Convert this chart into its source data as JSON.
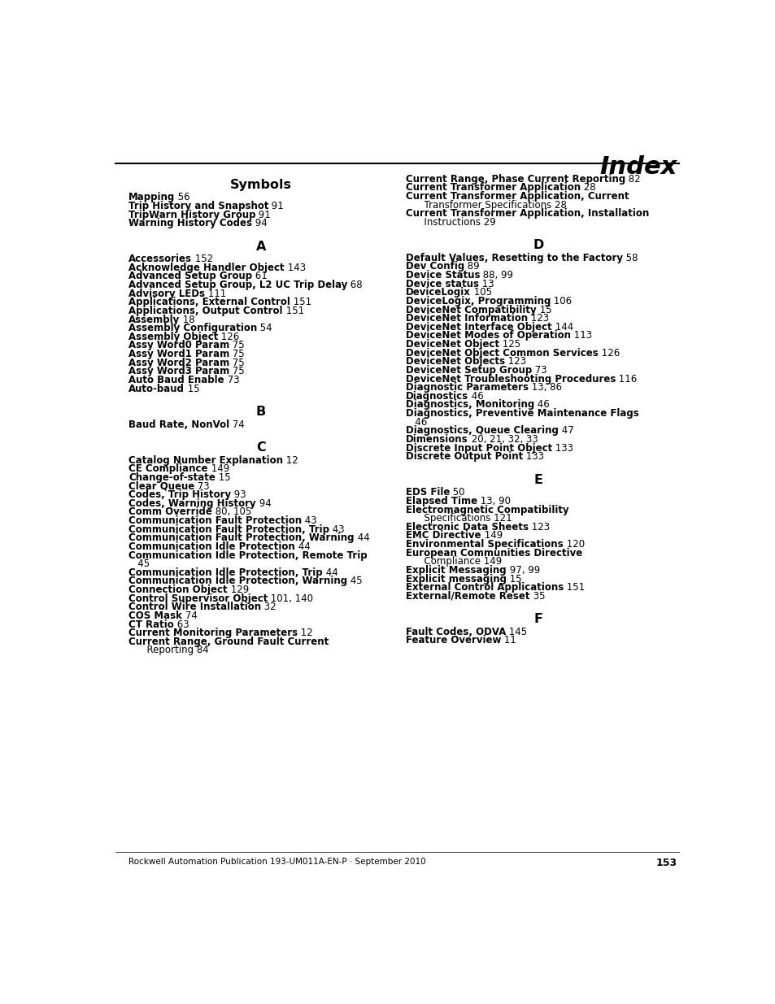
{
  "title": "Index",
  "footer_text": "Rockwell Automation Publication 193-UM011A-EN-P · September 2010",
  "footer_page": "153",
  "left_column": [
    {
      "type": "section",
      "text": "Symbols"
    },
    {
      "type": "entry",
      "bold": "Mapping",
      "normal": " 56"
    },
    {
      "type": "entry",
      "bold": "Trip History and Snapshot",
      "normal": " 91"
    },
    {
      "type": "entry",
      "bold": "TripWarn History Group",
      "normal": " 91"
    },
    {
      "type": "entry",
      "bold": "Warning History Codes",
      "normal": " 94"
    },
    {
      "type": "spacer"
    },
    {
      "type": "section",
      "text": "A"
    },
    {
      "type": "entry",
      "bold": "Accessories",
      "normal": " 152"
    },
    {
      "type": "entry",
      "bold": "Acknowledge Handler Object",
      "normal": " 143"
    },
    {
      "type": "entry",
      "bold": "Advanced Setup Group",
      "normal": " 61"
    },
    {
      "type": "entry",
      "bold": "Advanced Setup Group, L2 UC Trip Delay",
      "normal": " 68"
    },
    {
      "type": "entry",
      "bold": "Advisory LEDs",
      "normal": " 111"
    },
    {
      "type": "entry",
      "bold": "Applications, External Control",
      "normal": " 151"
    },
    {
      "type": "entry",
      "bold": "Applications, Output Control",
      "normal": " 151"
    },
    {
      "type": "entry",
      "bold": "Assembly",
      "normal": " 18"
    },
    {
      "type": "entry",
      "bold": "Assembly Configuration",
      "normal": " 54"
    },
    {
      "type": "entry",
      "bold": "Assembly Object",
      "normal": " 126"
    },
    {
      "type": "entry",
      "bold": "Assy Word0 Param",
      "normal": " 75"
    },
    {
      "type": "entry",
      "bold": "Assy Word1 Param",
      "normal": " 75"
    },
    {
      "type": "entry",
      "bold": "Assy Word2 Param",
      "normal": " 75"
    },
    {
      "type": "entry",
      "bold": "Assy Word3 Param",
      "normal": " 75"
    },
    {
      "type": "entry",
      "bold": "Auto Baud Enable",
      "normal": " 73"
    },
    {
      "type": "entry",
      "bold": "Auto-baud",
      "normal": " 15"
    },
    {
      "type": "spacer"
    },
    {
      "type": "section",
      "text": "B"
    },
    {
      "type": "entry",
      "bold": "Baud Rate, NonVol",
      "normal": " 74"
    },
    {
      "type": "spacer"
    },
    {
      "type": "section",
      "text": "C"
    },
    {
      "type": "entry",
      "bold": "Catalog Number Explanation",
      "normal": " 12"
    },
    {
      "type": "entry",
      "bold": "CE Compliance",
      "normal": " 149"
    },
    {
      "type": "entry",
      "bold": "Change-of-state",
      "normal": " 15"
    },
    {
      "type": "entry",
      "bold": "Clear Queue",
      "normal": " 73"
    },
    {
      "type": "entry",
      "bold": "Codes, Trip History",
      "normal": " 93"
    },
    {
      "type": "entry",
      "bold": "Codes, Warning History",
      "normal": " 94"
    },
    {
      "type": "entry",
      "bold": "Comm Override",
      "normal": " 80, 105"
    },
    {
      "type": "entry",
      "bold": "Communication Fault Protection",
      "normal": " 43"
    },
    {
      "type": "entry",
      "bold": "Communication Fault Protection, Trip",
      "normal": " 43"
    },
    {
      "type": "entry",
      "bold": "Communication Fault Protection, Warning",
      "normal": " 44"
    },
    {
      "type": "entry",
      "bold": "Communication Idle Protection",
      "normal": " 44"
    },
    {
      "type": "entry2",
      "bold": "Communication Idle Protection, Remote Trip",
      "indent": "   45"
    },
    {
      "type": "entry",
      "bold": "Communication Idle Protection, Trip",
      "normal": " 44"
    },
    {
      "type": "entry",
      "bold": "Communication Idle Protection, Warning",
      "normal": " 45"
    },
    {
      "type": "entry",
      "bold": "Connection Object",
      "normal": " 129"
    },
    {
      "type": "entry",
      "bold": "Control Supervisor Object",
      "normal": " 101, 140"
    },
    {
      "type": "entry",
      "bold": "Control Wire Installation",
      "normal": " 32"
    },
    {
      "type": "entry",
      "bold": "COS Mask",
      "normal": " 74"
    },
    {
      "type": "entry",
      "bold": "CT Ratio",
      "normal": " 63"
    },
    {
      "type": "entry",
      "bold": "Current Monitoring Parameters",
      "normal": " 12"
    },
    {
      "type": "entry2",
      "bold": "Current Range, Ground Fault Current",
      "indent": "      Reporting 84"
    }
  ],
  "right_column": [
    {
      "type": "entry",
      "bold": "Current Range, Phase Current Reporting",
      "normal": " 82"
    },
    {
      "type": "entry",
      "bold": "Current Transformer Application",
      "normal": " 28"
    },
    {
      "type": "entry2",
      "bold": "Current Transformer Application, Current",
      "indent": "      Transformer Specifications 28"
    },
    {
      "type": "entry2",
      "bold": "Current Transformer Application, Installation",
      "indent": "      Instructions 29"
    },
    {
      "type": "spacer"
    },
    {
      "type": "section",
      "text": "D"
    },
    {
      "type": "entry",
      "bold": "Default Values, Resetting to the Factory",
      "normal": " 58"
    },
    {
      "type": "entry",
      "bold": "Dev Config",
      "normal": " 89"
    },
    {
      "type": "entry",
      "bold": "Device Status",
      "normal": " 88, 99"
    },
    {
      "type": "entry",
      "bold": "Device status",
      "normal": " 13"
    },
    {
      "type": "entry",
      "bold": "DeviceLogix",
      "normal": " 105"
    },
    {
      "type": "entry",
      "bold": "DeviceLogix, Programming",
      "normal": " 106"
    },
    {
      "type": "entry",
      "bold": "DeviceNet Compatibility",
      "normal": " 15"
    },
    {
      "type": "entry",
      "bold": "DeviceNet Information",
      "normal": " 123"
    },
    {
      "type": "entry",
      "bold": "DeviceNet Interface Object",
      "normal": " 144"
    },
    {
      "type": "entry",
      "bold": "DeviceNet Modes of Operation",
      "normal": " 113"
    },
    {
      "type": "entry",
      "bold": "DeviceNet Object",
      "normal": " 125"
    },
    {
      "type": "entry",
      "bold": "DeviceNet Object Common Services",
      "normal": " 126"
    },
    {
      "type": "entry",
      "bold": "DeviceNet Objects",
      "normal": " 123"
    },
    {
      "type": "entry",
      "bold": "DeviceNet Setup Group",
      "normal": " 73"
    },
    {
      "type": "entry",
      "bold": "DeviceNet Troubleshooting Procedures",
      "normal": " 116"
    },
    {
      "type": "entry",
      "bold": "Diagnostic Parameters",
      "normal": " 13, 86"
    },
    {
      "type": "entry",
      "bold": "Diagnostics",
      "normal": " 46"
    },
    {
      "type": "entry",
      "bold": "Diagnostics, Monitoring",
      "normal": " 46"
    },
    {
      "type": "entry2",
      "bold": "Diagnostics, Preventive Maintenance Flags",
      "indent": "   46"
    },
    {
      "type": "entry",
      "bold": "Diagnostics, Queue Clearing",
      "normal": " 47"
    },
    {
      "type": "entry",
      "bold": "Dimensions",
      "normal": " 20, 21, 32, 33"
    },
    {
      "type": "entry",
      "bold": "Discrete Input Point Object",
      "normal": " 133"
    },
    {
      "type": "entry",
      "bold": "Discrete Output Point",
      "normal": " 133"
    },
    {
      "type": "spacer"
    },
    {
      "type": "section",
      "text": "E"
    },
    {
      "type": "entry",
      "bold": "EDS File",
      "normal": " 50"
    },
    {
      "type": "entry",
      "bold": "Elapsed Time",
      "normal": " 13, 90"
    },
    {
      "type": "entry2",
      "bold": "Electromagnetic Compatibility",
      "indent": "      Specifications 121"
    },
    {
      "type": "entry",
      "bold": "Electronic Data Sheets",
      "normal": " 123"
    },
    {
      "type": "entry",
      "bold": "EMC Directive",
      "normal": " 149"
    },
    {
      "type": "entry",
      "bold": "Environmental Specifications",
      "normal": " 120"
    },
    {
      "type": "entry2",
      "bold": "European Communities Directive",
      "indent": "      Compliance 149"
    },
    {
      "type": "entry",
      "bold": "Explicit Messaging",
      "normal": " 97, 99"
    },
    {
      "type": "entry",
      "bold": "Explicit messaging",
      "normal": " 15"
    },
    {
      "type": "entry",
      "bold": "External Control Applications",
      "normal": " 151"
    },
    {
      "type": "entry",
      "bold": "External/Remote Reset",
      "normal": " 35"
    },
    {
      "type": "spacer"
    },
    {
      "type": "section",
      "text": "F"
    },
    {
      "type": "entry",
      "bold": "Fault Codes, ODVA",
      "normal": " 145"
    },
    {
      "type": "entry",
      "bold": "Feature Overview",
      "normal": " 11"
    }
  ]
}
